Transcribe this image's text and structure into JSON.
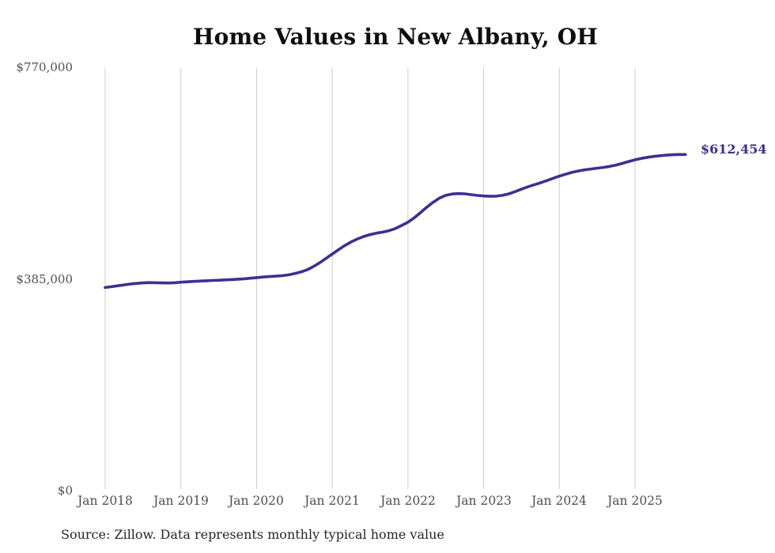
{
  "chart": {
    "title": "Home Values in New Albany, OH",
    "source_note": "Source: Zillow. Data represents monthly typical home value"
  },
  "chart_data": {
    "type": "line",
    "title": "Home Values in New Albany, OH",
    "xlabel": "",
    "ylabel": "",
    "ylim": [
      0,
      770000
    ],
    "grid": "vertical-gridlines-only",
    "legend": "none",
    "x_start": "Jan 2018",
    "x_end": "Sep 2025",
    "frequency": "monthly",
    "xticks": [
      "Jan 2018",
      "Jan 2019",
      "Jan 2020",
      "Jan 2021",
      "Jan 2022",
      "Jan 2023",
      "Jan 2024",
      "Jan 2025"
    ],
    "yticks": [
      {
        "value": 770000,
        "label": "$770,000"
      },
      {
        "value": 385000,
        "label": "$385,000"
      },
      {
        "value": 0,
        "label": "$0"
      }
    ],
    "end_annotation": "$612,454",
    "series": [
      {
        "name": "Typical home value",
        "values": [
          370000,
          371500,
          373200,
          374800,
          376300,
          377500,
          378400,
          378900,
          378700,
          378300,
          378200,
          378700,
          379600,
          380400,
          381100,
          381700,
          382300,
          382800,
          383300,
          383800,
          384400,
          385100,
          385900,
          386900,
          388000,
          389000,
          389900,
          390600,
          391500,
          393000,
          395200,
          398200,
          402200,
          408000,
          415000,
          423000,
          431000,
          439000,
          446500,
          453000,
          458500,
          463000,
          466500,
          469000,
          471000,
          473500,
          477500,
          483000,
          489000,
          497000,
          506500,
          516500,
          525500,
          533000,
          538000,
          540500,
          541200,
          540700,
          539300,
          537800,
          536800,
          536300,
          536600,
          538000,
          540800,
          544800,
          549200,
          553400,
          557200,
          560800,
          564800,
          569000,
          573000,
          576500,
          579800,
          582400,
          584400,
          586000,
          587400,
          588900,
          590800,
          593200,
          596200,
          599700,
          602800,
          605400,
          607400,
          609000,
          610300,
          611300,
          612000,
          612350,
          612454
        ]
      }
    ]
  },
  "colors": {
    "line": "#3a3191",
    "end_label": "#3a3191",
    "gridline": "#cccccc",
    "axis_text": "#4f4f4f",
    "title_text": "#0e0e0e",
    "background": "#ffffff"
  }
}
